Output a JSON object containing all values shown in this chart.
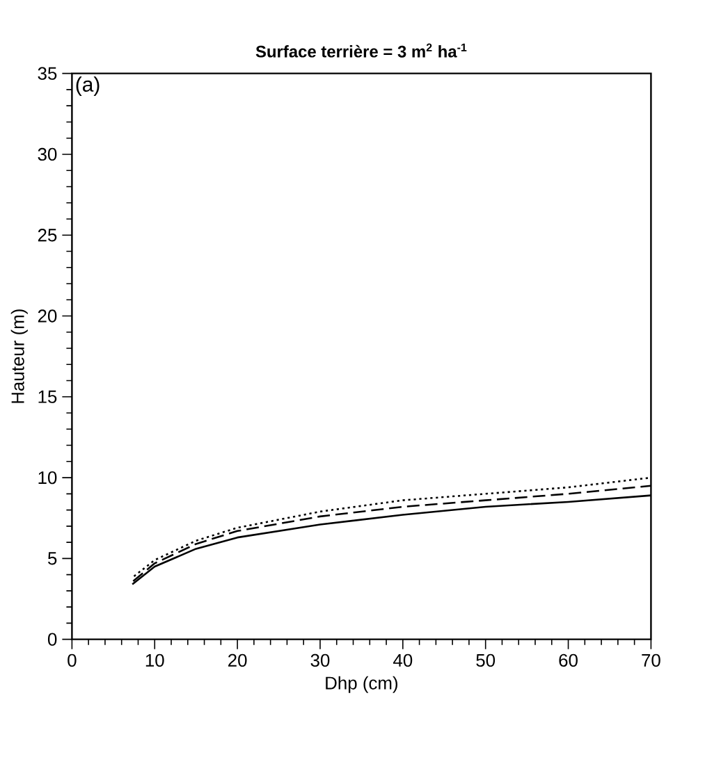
{
  "chart_data": {
    "type": "line",
    "title": "Surface terrière = 3 m$^{2}$ ha$^{-1}$",
    "xlabel": "Dhp (cm)",
    "ylabel": "Hauteur (m)",
    "annotations": [
      "(a)"
    ],
    "xlim": [
      0,
      70
    ],
    "xticks": [
      0,
      10,
      20,
      30,
      40,
      50,
      60,
      70
    ],
    "ylim": [
      0,
      35
    ],
    "yticks": [
      0,
      5,
      10,
      15,
      20,
      25,
      30,
      35
    ],
    "grid": false,
    "marker": "none",
    "series": [
      {
        "color": "#000000",
        "line_style": "solid",
        "x": [
          7.3,
          10,
          15,
          20,
          30,
          40,
          50,
          60,
          70
        ],
        "values": [
          3.4,
          4.5,
          5.6,
          6.3,
          7.1,
          7.7,
          8.2,
          8.5,
          8.9
        ]
      },
      {
        "color": "#000000",
        "line_style": "dashed",
        "x": [
          7.4,
          10,
          15,
          20,
          30,
          40,
          50,
          60,
          70
        ],
        "values": [
          3.6,
          4.7,
          5.9,
          6.7,
          7.6,
          8.2,
          8.6,
          9.0,
          9.5
        ]
      },
      {
        "color": "#000000",
        "line_style": "dotted",
        "x": [
          7.5,
          10,
          15,
          20,
          30,
          40,
          50,
          60,
          70
        ],
        "values": [
          3.9,
          4.9,
          6.1,
          6.9,
          7.9,
          8.6,
          9.0,
          9.4,
          10.0
        ]
      }
    ]
  }
}
